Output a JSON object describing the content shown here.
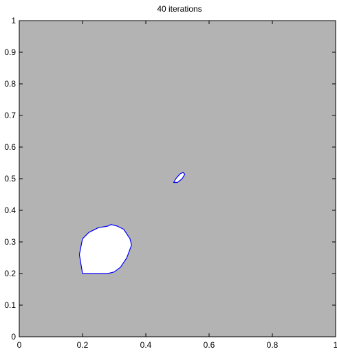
{
  "chart_data": {
    "type": "contour",
    "title": "40 iterations",
    "xlabel": "",
    "ylabel": "",
    "xlim": [
      0,
      1
    ],
    "ylim": [
      0,
      1
    ],
    "xticks": [
      0,
      0.2,
      0.4,
      0.6,
      0.8,
      1
    ],
    "xtick_labels": [
      "0",
      "0.2",
      "0.4",
      "0.6",
      "0.8",
      "1"
    ],
    "yticks": [
      0,
      0.1,
      0.2,
      0.3,
      0.4,
      0.5,
      0.6,
      0.7,
      0.8,
      0.9,
      1
    ],
    "ytick_labels": [
      "0",
      "0.1",
      "0.2",
      "0.3",
      "0.4",
      "0.5",
      "0.6",
      "0.7",
      "0.8",
      "0.9",
      "1"
    ],
    "background_color": "#b3b3b3",
    "region_fill_color": "#ffffff",
    "contour_color": "#0000ff",
    "regions": [
      {
        "points": [
          [
            0.2,
            0.2
          ],
          [
            0.19,
            0.26
          ],
          [
            0.2,
            0.31
          ],
          [
            0.22,
            0.33
          ],
          [
            0.25,
            0.345
          ],
          [
            0.28,
            0.35
          ],
          [
            0.29,
            0.355
          ],
          [
            0.31,
            0.35
          ],
          [
            0.33,
            0.34
          ],
          [
            0.35,
            0.31
          ],
          [
            0.355,
            0.29
          ],
          [
            0.34,
            0.25
          ],
          [
            0.32,
            0.22
          ],
          [
            0.3,
            0.205
          ],
          [
            0.28,
            0.2
          ],
          [
            0.24,
            0.2
          ]
        ]
      },
      {
        "points": [
          [
            0.488,
            0.488
          ],
          [
            0.495,
            0.5
          ],
          [
            0.508,
            0.515
          ],
          [
            0.518,
            0.52
          ],
          [
            0.523,
            0.514
          ],
          [
            0.515,
            0.5
          ],
          [
            0.5,
            0.488
          ]
        ]
      }
    ]
  }
}
